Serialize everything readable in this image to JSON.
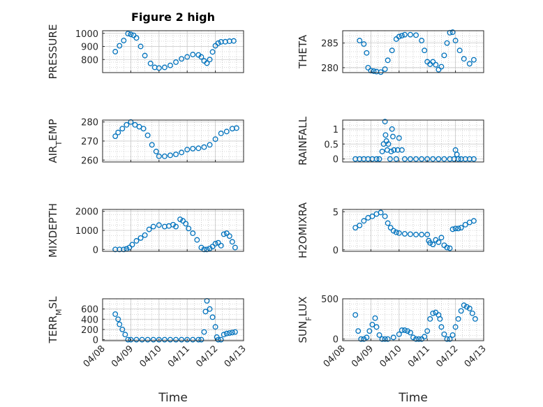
{
  "colors": {
    "marker": "#0072BD",
    "axis": "#262626",
    "grid": "#b0b0b0"
  },
  "chart_data": [
    {
      "type": "scatter",
      "title": "Figure 2 high",
      "ylabel": "PRESSURE",
      "ylim": [
        700,
        1020
      ],
      "yticks": [
        800,
        900,
        1000
      ],
      "xlim": [
        0,
        5
      ],
      "x": [
        0.45,
        0.6,
        0.75,
        0.9,
        1.0,
        1.1,
        1.2,
        1.35,
        1.5,
        1.7,
        1.85,
        2.0,
        2.2,
        2.4,
        2.6,
        2.8,
        3.0,
        3.2,
        3.4,
        3.5,
        3.6,
        3.7,
        3.8,
        3.9,
        4.0,
        4.1,
        4.2,
        4.35,
        4.5,
        4.65
      ],
      "y": [
        860,
        905,
        945,
        998,
        992,
        985,
        965,
        900,
        830,
        770,
        740,
        735,
        740,
        755,
        780,
        805,
        820,
        838,
        835,
        820,
        790,
        772,
        800,
        858,
        905,
        925,
        935,
        936,
        940,
        942
      ]
    },
    {
      "type": "scatter",
      "ylabel": "THETA",
      "ylim": [
        279,
        287.5
      ],
      "yticks": [
        280,
        285
      ],
      "xlim": [
        0,
        5
      ],
      "x": [
        0.6,
        0.75,
        0.85,
        0.9,
        1.0,
        1.1,
        1.2,
        1.35,
        1.5,
        1.6,
        1.75,
        1.9,
        2.0,
        2.1,
        2.2,
        2.4,
        2.6,
        2.8,
        2.9,
        3.0,
        3.1,
        3.2,
        3.3,
        3.4,
        3.5,
        3.6,
        3.7,
        3.8,
        3.9,
        4.0,
        4.15,
        4.3,
        4.5,
        4.65
      ],
      "y": [
        285.5,
        284.8,
        283,
        280,
        279.4,
        279.3,
        279.2,
        279.1,
        279.7,
        281.5,
        283.5,
        285.8,
        286.3,
        286.5,
        286.7,
        286.7,
        286.6,
        285.5,
        283.5,
        281.2,
        280.7,
        281.2,
        280.6,
        279.6,
        280.2,
        282.5,
        285,
        287.1,
        287.2,
        285.5,
        283.5,
        281.8,
        280.8,
        281.6
      ]
    },
    {
      "type": "scatter",
      "ylabel": "AIR_TEMP",
      "ylim": [
        259,
        281
      ],
      "yticks": [
        260,
        270,
        280
      ],
      "xlim": [
        0,
        5
      ],
      "x": [
        0.45,
        0.55,
        0.7,
        0.85,
        1.0,
        1.15,
        1.3,
        1.45,
        1.6,
        1.75,
        1.9,
        2.0,
        2.2,
        2.4,
        2.6,
        2.8,
        3.0,
        3.2,
        3.4,
        3.6,
        3.8,
        4.0,
        4.2,
        4.4,
        4.6,
        4.75
      ],
      "y": [
        272.5,
        274.5,
        276.5,
        278.5,
        280,
        278.5,
        277.5,
        276.5,
        273,
        268,
        264.5,
        262,
        262,
        262.5,
        263,
        264,
        265.5,
        266,
        266.2,
        266.8,
        268,
        271,
        274,
        275,
        276.5,
        276.8
      ]
    },
    {
      "type": "scatter",
      "ylabel": "RAINFALL",
      "ylim": [
        -0.1,
        1.3
      ],
      "yticks": [
        0,
        0.5,
        1
      ],
      "xlim": [
        0,
        5
      ],
      "x": [
        0.45,
        0.6,
        0.75,
        0.9,
        1.05,
        1.2,
        1.3,
        1.4,
        1.45,
        1.5,
        1.52,
        1.55,
        1.58,
        1.62,
        1.68,
        1.72,
        1.75,
        1.78,
        1.82,
        1.9,
        1.95,
        2.0,
        2.1,
        2.2,
        2.4,
        2.6,
        2.8,
        3.0,
        3.2,
        3.4,
        3.6,
        3.8,
        3.95,
        4.0,
        4.05,
        4.1,
        4.2,
        4.35,
        4.5,
        4.65
      ],
      "y": [
        0,
        0,
        0,
        0,
        0,
        0,
        0,
        0.25,
        0.5,
        1.25,
        0.8,
        0.6,
        0.3,
        0.5,
        0,
        0.25,
        1.0,
        0.75,
        0.3,
        0,
        0.3,
        0.7,
        0.3,
        0,
        0,
        0,
        0,
        0,
        0,
        0,
        0,
        0,
        0,
        0.3,
        0.15,
        0,
        0,
        0,
        0,
        0
      ]
    },
    {
      "type": "scatter",
      "ylabel": "MIXDEPTH",
      "ylim": [
        -100,
        2100
      ],
      "yticks": [
        0,
        1000,
        2000
      ],
      "xlim": [
        0,
        5
      ],
      "x": [
        0.45,
        0.6,
        0.75,
        0.85,
        0.95,
        1.05,
        1.2,
        1.35,
        1.5,
        1.65,
        1.8,
        2.0,
        2.2,
        2.35,
        2.5,
        2.6,
        2.75,
        2.85,
        2.95,
        3.05,
        3.2,
        3.35,
        3.5,
        3.6,
        3.7,
        3.8,
        3.9,
        4.0,
        4.1,
        4.2,
        4.3,
        4.4,
        4.5,
        4.6,
        4.7
      ],
      "y": [
        0,
        0,
        0,
        30,
        100,
        250,
        450,
        600,
        750,
        1050,
        1200,
        1280,
        1200,
        1230,
        1300,
        1200,
        1580,
        1500,
        1350,
        1100,
        850,
        500,
        100,
        0,
        0,
        50,
        150,
        300,
        350,
        200,
        800,
        850,
        700,
        400,
        100
      ]
    },
    {
      "type": "scatter",
      "ylabel": "H2OMIXRA",
      "ylim": [
        -0.2,
        5.3
      ],
      "yticks": [
        0,
        5
      ],
      "xlim": [
        0,
        5
      ],
      "x": [
        0.45,
        0.6,
        0.75,
        0.9,
        1.05,
        1.2,
        1.35,
        1.5,
        1.6,
        1.7,
        1.8,
        1.9,
        2.0,
        2.2,
        2.4,
        2.6,
        2.8,
        3.0,
        3.05,
        3.1,
        3.2,
        3.3,
        3.4,
        3.5,
        3.6,
        3.7,
        3.8,
        3.9,
        4.0,
        4.1,
        4.2,
        4.35,
        4.5,
        4.65
      ],
      "y": [
        2.9,
        3.2,
        3.8,
        4.2,
        4.4,
        4.7,
        4.9,
        4.4,
        3.5,
        2.9,
        2.5,
        2.3,
        2.2,
        2.1,
        2.05,
        2.0,
        2.0,
        2.0,
        1.2,
        0.9,
        0.7,
        1.3,
        1.0,
        1.6,
        0.6,
        0.3,
        0.2,
        2.7,
        2.8,
        2.8,
        2.9,
        3.3,
        3.6,
        3.8
      ]
    },
    {
      "type": "scatter",
      "ylabel": "TERR_MSL",
      "ylim": [
        -20,
        800
      ],
      "yticks": [
        0,
        200,
        400,
        600
      ],
      "xlim": [
        0,
        5
      ],
      "x": [
        0.45,
        0.55,
        0.6,
        0.7,
        0.8,
        0.9,
        1.0,
        1.2,
        1.4,
        1.6,
        1.8,
        2.0,
        2.2,
        2.4,
        2.6,
        2.8,
        3.0,
        3.2,
        3.4,
        3.5,
        3.6,
        3.65,
        3.7,
        3.8,
        3.9,
        4.0,
        4.05,
        4.1,
        4.2,
        4.3,
        4.4,
        4.5,
        4.6,
        4.7
      ],
      "y": [
        500,
        400,
        300,
        200,
        100,
        0,
        0,
        0,
        0,
        0,
        0,
        0,
        0,
        0,
        0,
        0,
        0,
        0,
        0,
        0,
        150,
        550,
        760,
        600,
        440,
        250,
        50,
        0,
        0,
        100,
        120,
        130,
        140,
        150
      ]
    },
    {
      "type": "scatter",
      "ylabel": "SUN_FLUX",
      "ylim": [
        -20,
        500
      ],
      "yticks": [
        0,
        500
      ],
      "xlim": [
        0,
        5
      ],
      "x": [
        0.45,
        0.55,
        0.65,
        0.75,
        0.85,
        0.95,
        1.05,
        1.15,
        1.2,
        1.3,
        1.4,
        1.5,
        1.6,
        1.8,
        2.0,
        2.1,
        2.2,
        2.3,
        2.4,
        2.5,
        2.6,
        2.7,
        2.8,
        2.9,
        3.0,
        3.1,
        3.2,
        3.3,
        3.4,
        3.45,
        3.5,
        3.6,
        3.7,
        3.8,
        3.9,
        4.0,
        4.1,
        4.2,
        4.3,
        4.4,
        4.5,
        4.6,
        4.7
      ],
      "y": [
        300,
        100,
        0,
        0,
        20,
        100,
        180,
        260,
        150,
        50,
        0,
        0,
        0,
        20,
        60,
        110,
        110,
        100,
        80,
        20,
        0,
        0,
        0,
        30,
        100,
        250,
        320,
        330,
        300,
        250,
        150,
        60,
        0,
        0,
        50,
        150,
        250,
        350,
        420,
        400,
        380,
        320,
        250
      ]
    }
  ],
  "xaxis": {
    "label": "Time",
    "ticks": [
      0,
      1,
      2,
      3,
      4,
      5
    ],
    "ticklabels": [
      "04/08",
      "04/09",
      "04/10",
      "04/11",
      "04/12",
      "04/13"
    ]
  }
}
